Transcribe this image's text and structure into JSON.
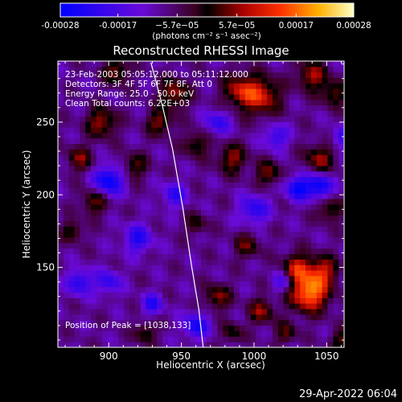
{
  "chart_data": {
    "type": "heatmap",
    "title": "Reconstructed RHESSI Image",
    "xlabel": "Heliocentric X (arcsec)",
    "ylabel": "Heliocentric Y (arcsec)",
    "xlim": [
      865,
      1062
    ],
    "ylim": [
      95,
      292
    ],
    "x_ticks": [
      900,
      950,
      1000,
      1050
    ],
    "y_ticks": [
      150,
      200,
      250
    ],
    "colorbar": {
      "ticks": [
        {
          "value": -0.00028,
          "label": "-0.00028"
        },
        {
          "value": -0.00017,
          "label": "-0.00017"
        },
        {
          "value": -5.7e-05,
          "label": "−5.7e−05"
        },
        {
          "value": 5.7e-05,
          "label": "5.7e−05"
        },
        {
          "value": 0.00017,
          "label": "0.00017"
        },
        {
          "value": 0.00028,
          "label": "0.00028"
        }
      ],
      "range": [
        -0.00028,
        0.00028
      ],
      "unit_label": "(photons cm⁻² s⁻¹ asec⁻²)"
    },
    "annotations": [
      "23-Feb-2003 05:05:12.000 to 05:11:12.000",
      "Detectors: 3F 4F 5F 6F 7F 8F, Att 0",
      "Energy Range: 25.0 - 50.0 keV",
      "Clean    Total counts: 6.22E+03"
    ],
    "peak_label": "Position of Peak = [1038,133]",
    "peak": {
      "x": 1038,
      "y": 133
    },
    "timestamp": "29-Apr-2022 06:04",
    "limb": [
      {
        "x": 929,
        "y": 291
      },
      {
        "x": 937,
        "y": 261
      },
      {
        "x": 944,
        "y": 231
      },
      {
        "x": 951,
        "y": 191
      },
      {
        "x": 957,
        "y": 151
      },
      {
        "x": 962,
        "y": 121
      },
      {
        "x": 965,
        "y": 95
      }
    ],
    "grid_size": [
      52,
      52
    ],
    "hotspots": [
      {
        "x": 1038,
        "y": 133,
        "amp": 1.0,
        "r": 9
      },
      {
        "x": 1030,
        "y": 150,
        "amp": 0.6,
        "r": 7
      },
      {
        "x": 1048,
        "y": 148,
        "amp": 0.55,
        "r": 7
      },
      {
        "x": 1005,
        "y": 268,
        "amp": 0.65,
        "r": 9
      },
      {
        "x": 990,
        "y": 272,
        "amp": 0.55,
        "r": 8
      },
      {
        "x": 945,
        "y": 270,
        "amp": 0.55,
        "r": 7
      },
      {
        "x": 935,
        "y": 250,
        "amp": 0.5,
        "r": 6
      },
      {
        "x": 1040,
        "y": 282,
        "amp": 0.55,
        "r": 7
      },
      {
        "x": 1055,
        "y": 270,
        "amp": 0.45,
        "r": 6
      },
      {
        "x": 895,
        "y": 250,
        "amp": 0.55,
        "r": 7
      },
      {
        "x": 880,
        "y": 225,
        "amp": 0.45,
        "r": 6
      },
      {
        "x": 905,
        "y": 285,
        "amp": 0.5,
        "r": 6
      },
      {
        "x": 985,
        "y": 225,
        "amp": 0.5,
        "r": 7
      },
      {
        "x": 1010,
        "y": 215,
        "amp": 0.45,
        "r": 6
      },
      {
        "x": 1045,
        "y": 225,
        "amp": 0.5,
        "r": 7
      },
      {
        "x": 960,
        "y": 235,
        "amp": 0.4,
        "r": 6
      },
      {
        "x": 890,
        "y": 195,
        "amp": 0.45,
        "r": 6
      },
      {
        "x": 875,
        "y": 175,
        "amp": 0.4,
        "r": 5
      },
      {
        "x": 975,
        "y": 130,
        "amp": 0.5,
        "r": 6
      },
      {
        "x": 995,
        "y": 165,
        "amp": 0.4,
        "r": 6
      },
      {
        "x": 1005,
        "y": 120,
        "amp": 0.5,
        "r": 6
      },
      {
        "x": 1022,
        "y": 105,
        "amp": 0.4,
        "r": 5
      },
      {
        "x": 925,
        "y": 105,
        "amp": 0.4,
        "r": 5
      },
      {
        "x": 960,
        "y": 180,
        "amp": 0.35,
        "r": 5
      },
      {
        "x": 1052,
        "y": 190,
        "amp": 0.4,
        "r": 6
      },
      {
        "x": 918,
        "y": 220,
        "amp": 0.4,
        "r": 6
      },
      {
        "x": 985,
        "y": 105,
        "amp": 0.35,
        "r": 5
      },
      {
        "x": 1060,
        "y": 100,
        "amp": 0.4,
        "r": 5
      }
    ],
    "coldspots": [
      {
        "x": 900,
        "y": 210,
        "amp": -0.7,
        "r": 7
      },
      {
        "x": 1030,
        "y": 205,
        "amp": -0.65,
        "r": 6
      },
      {
        "x": 1045,
        "y": 206,
        "amp": -0.7,
        "r": 6
      },
      {
        "x": 960,
        "y": 110,
        "amp": -0.6,
        "r": 6
      },
      {
        "x": 930,
        "y": 125,
        "amp": -0.5,
        "r": 5
      },
      {
        "x": 880,
        "y": 140,
        "amp": -0.55,
        "r": 6
      },
      {
        "x": 920,
        "y": 170,
        "amp": -0.5,
        "r": 7
      },
      {
        "x": 945,
        "y": 200,
        "amp": -0.45,
        "r": 6
      },
      {
        "x": 1000,
        "y": 190,
        "amp": -0.5,
        "r": 7
      },
      {
        "x": 1015,
        "y": 240,
        "amp": -0.45,
        "r": 6
      },
      {
        "x": 975,
        "y": 250,
        "amp": -0.45,
        "r": 6
      },
      {
        "x": 900,
        "y": 140,
        "amp": -0.45,
        "r": 6
      },
      {
        "x": 1020,
        "y": 140,
        "amp": -0.4,
        "r": 5
      },
      {
        "x": 1060,
        "y": 240,
        "amp": -0.4,
        "r": 5
      }
    ]
  }
}
